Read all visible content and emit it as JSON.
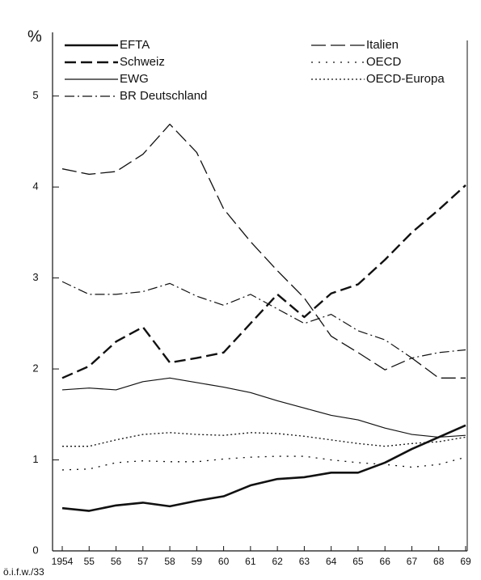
{
  "chart_data": {
    "type": "line",
    "y_label": "%",
    "note": "ö.i.f.w./33",
    "categories": [
      "1954",
      "55",
      "56",
      "57",
      "58",
      "59",
      "60",
      "61",
      "62",
      "63",
      "64",
      "65",
      "66",
      "67",
      "68",
      "69"
    ],
    "ylim": [
      0,
      5.7
    ],
    "yticks": [
      0,
      1,
      2,
      3,
      4,
      5
    ],
    "legend": "top",
    "series": [
      {
        "name": "EFTA",
        "color": "#111111",
        "style": "solid",
        "linewidth": 2.6,
        "values": [
          0.47,
          0.44,
          0.5,
          0.53,
          0.49,
          0.55,
          0.6,
          0.72,
          0.79,
          0.81,
          0.86,
          0.86,
          0.97,
          1.12,
          1.25,
          1.38
        ]
      },
      {
        "name": "Schweiz",
        "color": "#111111",
        "style": "dashed",
        "linewidth": 2.4,
        "values": [
          1.9,
          2.03,
          2.3,
          2.46,
          2.07,
          2.12,
          2.18,
          2.5,
          2.82,
          2.57,
          2.83,
          2.93,
          3.2,
          3.5,
          3.75,
          4.02
        ]
      },
      {
        "name": "EWG",
        "color": "#111111",
        "style": "solid",
        "linewidth": 1.2,
        "values": [
          1.77,
          1.79,
          1.77,
          1.86,
          1.9,
          1.85,
          1.8,
          1.74,
          1.65,
          1.57,
          1.49,
          1.44,
          1.35,
          1.28,
          1.25,
          1.27
        ]
      },
      {
        "name": "BR Deutschland",
        "color": "#111111",
        "style": "dashdot",
        "linewidth": 1.2,
        "values": [
          2.96,
          2.82,
          2.82,
          2.85,
          2.94,
          2.8,
          2.7,
          2.82,
          2.66,
          2.5,
          2.6,
          2.42,
          2.32,
          2.12,
          2.18,
          2.21
        ]
      },
      {
        "name": "Italien",
        "color": "#111111",
        "style": "longdash",
        "linewidth": 1.3,
        "values": [
          4.2,
          4.14,
          4.17,
          4.36,
          4.69,
          4.38,
          3.76,
          3.4,
          3.08,
          2.78,
          2.36,
          2.18,
          1.99,
          2.12,
          1.9,
          1.9
        ]
      },
      {
        "name": "OECD",
        "color": "#111111",
        "style": "sparsedot",
        "linewidth": 1.3,
        "values": [
          0.89,
          0.9,
          0.97,
          0.99,
          0.98,
          0.98,
          1.01,
          1.03,
          1.04,
          1.04,
          1.0,
          0.97,
          0.95,
          0.92,
          0.95,
          1.03
        ]
      },
      {
        "name": "OECD-Europa",
        "color": "#111111",
        "style": "dotted",
        "linewidth": 1.3,
        "values": [
          1.15,
          1.15,
          1.22,
          1.28,
          1.3,
          1.28,
          1.27,
          1.3,
          1.29,
          1.26,
          1.22,
          1.18,
          1.15,
          1.18,
          1.2,
          1.25
        ]
      }
    ]
  }
}
